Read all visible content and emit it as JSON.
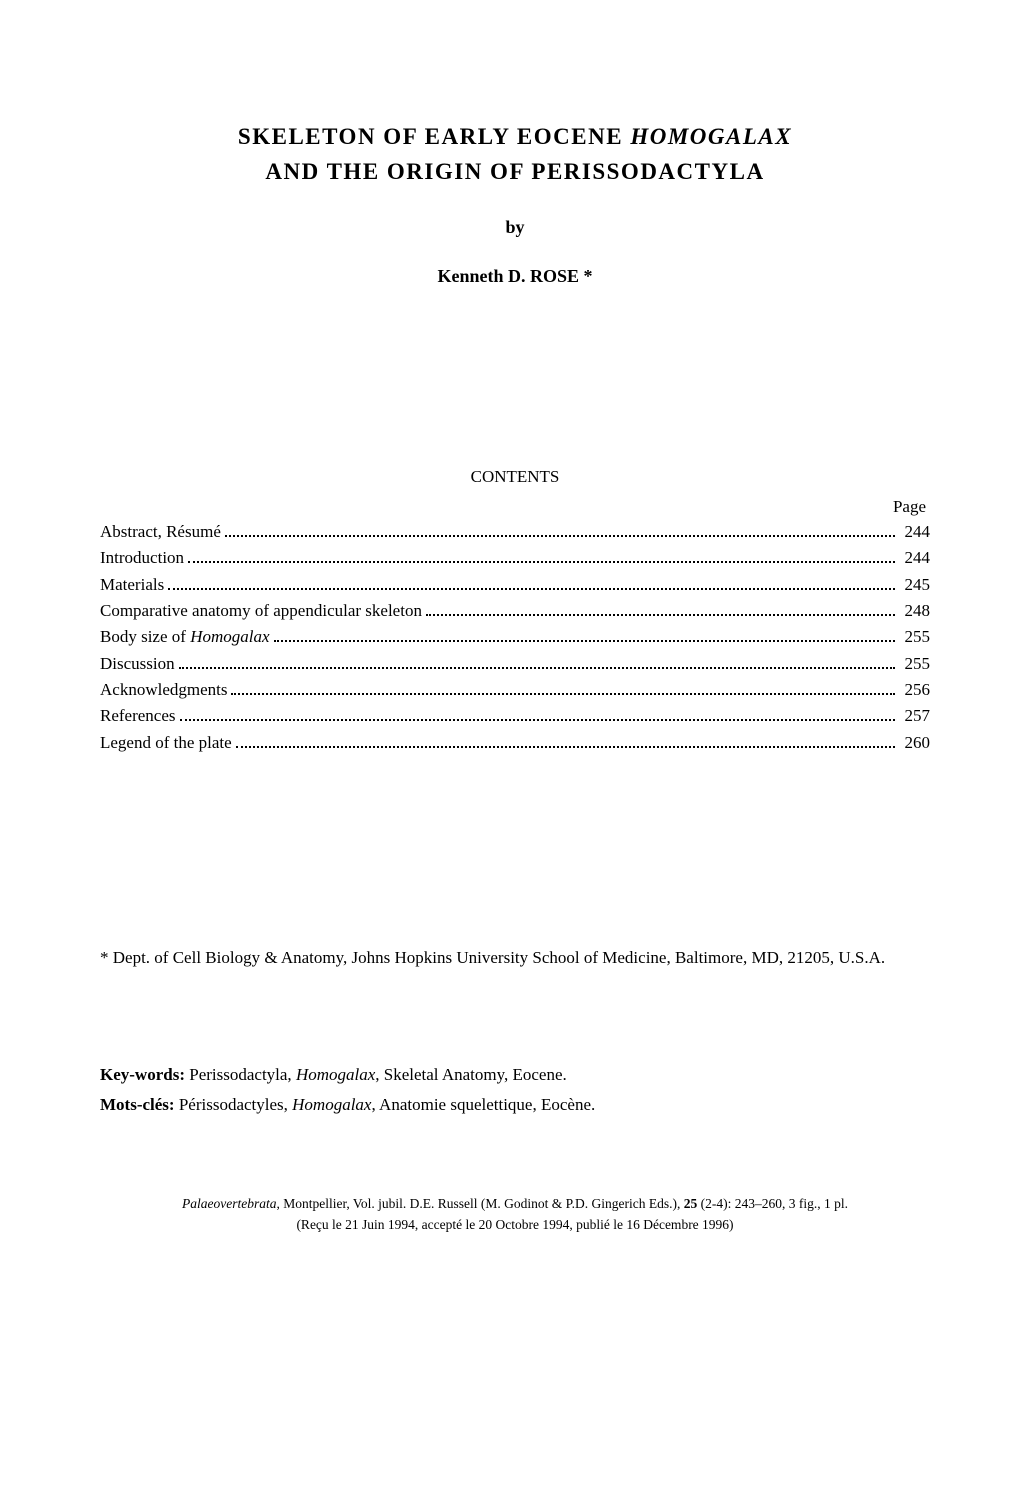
{
  "title": {
    "line1_prefix": "SKELETON OF EARLY EOCENE ",
    "line1_italic": "HOMOGALAX",
    "line2": "AND THE ORIGIN OF PERISSODACTYLA",
    "by": "by",
    "author": "Kenneth D. ROSE *"
  },
  "contents": {
    "heading": "CONTENTS",
    "page_label": "Page",
    "items": [
      {
        "label": "Abstract, Résumé",
        "page": "244"
      },
      {
        "label": "Introduction",
        "page": "244"
      },
      {
        "label": "Materials",
        "page": "245"
      },
      {
        "label": "Comparative anatomy of appendicular skeleton",
        "page": "248"
      },
      {
        "label_prefix": "Body size of ",
        "label_italic": "Homogalax",
        "page": "255"
      },
      {
        "label": "Discussion",
        "page": "255"
      },
      {
        "label": "Acknowledgments",
        "page": "256"
      },
      {
        "label": "References",
        "page": "257"
      },
      {
        "label": "Legend of the plate",
        "page": "260"
      }
    ]
  },
  "affiliation": "* Dept. of Cell Biology & Anatomy, Johns Hopkins University School of Medicine, Baltimore, MD, 21205, U.S.A.",
  "keywords": {
    "en_label": "Key-words:",
    "en_text": " Perissodactyla, ",
    "en_italic": "Homogalax",
    "en_suffix": ", Skeletal Anatomy, Eocene.",
    "fr_label": "Mots-clés:",
    "fr_text": " Périssodactyles, ",
    "fr_italic": "Homogalax",
    "fr_suffix": ", Anatomie squelettique, Eocène."
  },
  "citation": {
    "journal": "Palaeovertebrata",
    "line1_after_journal": ", Montpellier, Vol. jubil. D.E. Russell (M. Godinot & P.D. Gingerich Eds.), ",
    "vol": "25",
    "line1_suffix": " (2-4): 243–260, 3 fig., 1 pl.",
    "line2": "(Reçu le 21 Juin 1994, accepté le 20 Octobre 1994, publié le 16 Décembre 1996)"
  },
  "style": {
    "background_color": "#ffffff",
    "text_color": "#000000",
    "font_family": "Times New Roman",
    "title_fontsize": 23,
    "body_fontsize": 17,
    "citation_fontsize": 13.5
  }
}
